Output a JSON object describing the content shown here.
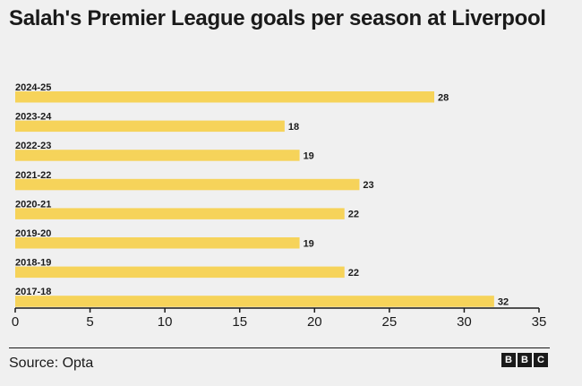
{
  "title": "Salah's Premier League goals per season at Liverpool",
  "source": "Source: Opta",
  "logo": [
    "B",
    "B",
    "C"
  ],
  "colors": {
    "bar": "#f6d35a",
    "axis": "#1a1a1a",
    "background": "#f0f0f0"
  },
  "chart_data": {
    "type": "bar",
    "orientation": "horizontal",
    "title": "Salah's Premier League goals per season at Liverpool",
    "categories": [
      "2024-25",
      "2023-24",
      "2022-23",
      "2021-22",
      "2020-21",
      "2019-20",
      "2018-19",
      "2017-18"
    ],
    "values": [
      28,
      18,
      19,
      23,
      22,
      19,
      22,
      32
    ],
    "x_ticks": [
      0,
      5,
      10,
      15,
      20,
      25,
      30,
      35
    ],
    "xlim": [
      0,
      35
    ],
    "xlabel": "",
    "ylabel": "",
    "grid": false,
    "data_labels": true
  }
}
